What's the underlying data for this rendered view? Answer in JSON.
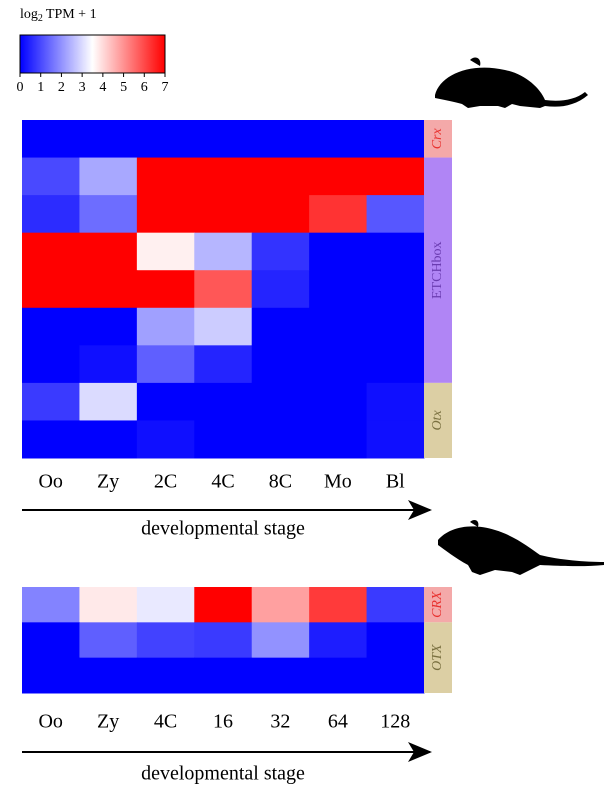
{
  "colorbar": {
    "title": {
      "main": "log",
      "sub": "2",
      "rest": "TPM + 1"
    },
    "lim": [
      0,
      7
    ],
    "ticks": [
      0,
      1,
      2,
      3,
      4,
      5,
      6,
      7
    ],
    "colors": [
      "#0000ff",
      "#ffffff",
      "#ff0000"
    ]
  },
  "chart_data": [
    {
      "type": "heatmap",
      "x_categories": [
        "Oo",
        "Zy",
        "2C",
        "4C",
        "8C",
        "Mo",
        "Bl"
      ],
      "values": [
        [
          0,
          0,
          0,
          0,
          0,
          0,
          0
        ],
        [
          1,
          2.3,
          7,
          7,
          7,
          7,
          7
        ],
        [
          0.6,
          1.5,
          7,
          7,
          7,
          6.3,
          1.2
        ],
        [
          7,
          7,
          3.7,
          2.5,
          0.7,
          0,
          0
        ],
        [
          7,
          7,
          7,
          5.8,
          0.5,
          0,
          0
        ],
        [
          0,
          0,
          2.2,
          2.8,
          0,
          0,
          0
        ],
        [
          0,
          0.2,
          1.3,
          0.5,
          0,
          0,
          0
        ],
        [
          0.8,
          3,
          0,
          0,
          0,
          0,
          0.2
        ],
        [
          0,
          0,
          0.2,
          0,
          0,
          0,
          0.2
        ]
      ],
      "row_groups": [
        {
          "name": "Crx",
          "size": 1,
          "color": "#f4a9a9",
          "text_color": "#e8302e",
          "italic": true
        },
        {
          "name": "ETCHbox",
          "size": 6,
          "color": "#b085f5",
          "text_color": "#6a3cb0",
          "italic": false
        },
        {
          "name": "Otx",
          "size": 2,
          "color": "#dccfa4",
          "text_color": "#7a7040",
          "italic": true
        }
      ],
      "xlabel": "developmental stage"
    },
    {
      "type": "heatmap",
      "x_categories": [
        "Oo",
        "Zy",
        "4C",
        "16",
        "32",
        "64",
        "128"
      ],
      "values": [
        [
          1.8,
          3.8,
          3.2,
          7,
          4.8,
          6.2,
          0.8
        ],
        [
          0,
          1.3,
          0.9,
          0.8,
          2,
          0.4,
          0
        ],
        [
          0,
          0,
          0,
          0,
          0,
          0,
          0
        ]
      ],
      "row_groups": [
        {
          "name": "CRX",
          "size": 1,
          "color": "#f4a9a9",
          "text_color": "#e8302e",
          "italic": true
        },
        {
          "name": "OTX",
          "size": 2,
          "color": "#dccfa4",
          "text_color": "#7a7040",
          "italic": true
        }
      ],
      "xlabel": "developmental stage"
    }
  ]
}
